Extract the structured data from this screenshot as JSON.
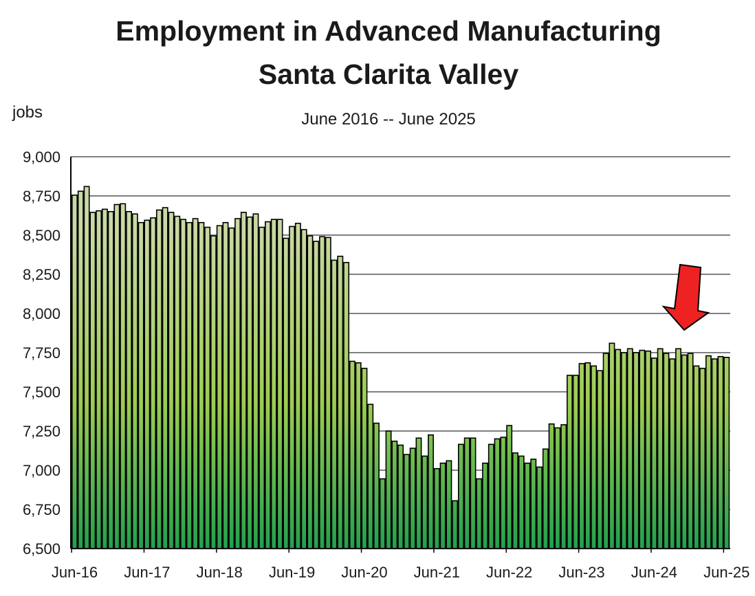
{
  "chart_data": {
    "type": "bar",
    "title": "Employment in Advanced Manufacturing",
    "subtitle_line2": "Santa Clarita Valley",
    "subtitle": "June 2016 -- June 2025",
    "ylabel": "jobs",
    "xlabel": "",
    "frequency": "monthly",
    "ylim": [
      6500,
      9000
    ],
    "y_ticks": [
      "6,500",
      "6,750",
      "7,000",
      "7,250",
      "7,500",
      "7,750",
      "8,000",
      "8,250",
      "8,500",
      "8,750",
      "9,000"
    ],
    "y_tick_values": [
      6500,
      6750,
      7000,
      7250,
      7500,
      7750,
      8000,
      8250,
      8500,
      8750,
      9000
    ],
    "x_tick_labels": [
      "Jun-16",
      "Jun-17",
      "Jun-18",
      "Jun-19",
      "Jun-20",
      "Jun-21",
      "Jun-22",
      "Jun-23",
      "Jun-24",
      "Jun-25"
    ],
    "grid": true,
    "values": [
      8755,
      8780,
      8810,
      8645,
      8655,
      8665,
      8650,
      8695,
      8700,
      8650,
      8635,
      8580,
      8595,
      8610,
      8660,
      8675,
      8645,
      8620,
      8600,
      8580,
      8605,
      8580,
      8550,
      8495,
      8560,
      8580,
      8545,
      8605,
      8645,
      8615,
      8635,
      8550,
      8585,
      8600,
      8600,
      8480,
      8555,
      8575,
      8535,
      8495,
      8460,
      8490,
      8485,
      8340,
      8365,
      8325,
      7695,
      7685,
      7650,
      7420,
      7300,
      6945,
      7250,
      7185,
      7160,
      7100,
      7140,
      7205,
      7090,
      7225,
      7010,
      7045,
      7060,
      6805,
      7165,
      7205,
      7205,
      6945,
      7045,
      7165,
      7200,
      7210,
      7285,
      7110,
      7090,
      7045,
      7070,
      7020,
      7135,
      7295,
      7270,
      7290,
      7605,
      7605,
      7680,
      7685,
      7665,
      7635,
      7745,
      7810,
      7770,
      7750,
      7775,
      7750,
      7765,
      7760,
      7715,
      7775,
      7745,
      7710,
      7775,
      7735,
      7745,
      7665,
      7650,
      7730,
      7710,
      7725,
      7720
    ],
    "annotation": "red-arrow-pointing-down",
    "colors": {
      "bar_top": "#c9d9a4",
      "bar_mid": "#9ccc52",
      "bar_bottom": "#22a04e",
      "grid": "#808080",
      "arrow": "#ee2222"
    }
  }
}
